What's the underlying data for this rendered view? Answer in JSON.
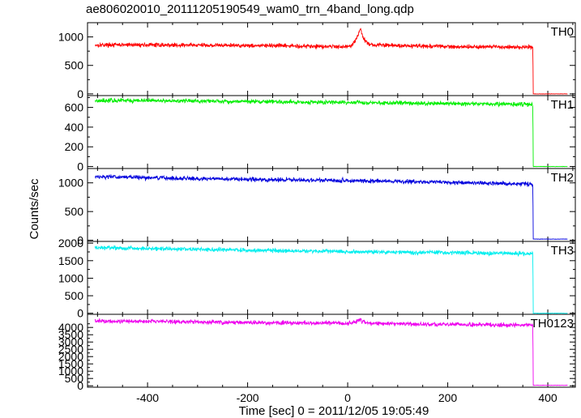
{
  "chart_data": {
    "type": "line",
    "title": "ae806020010_20111205190549_wam0_trn_4band_long.qdp",
    "xlabel": "Time [sec] 0 = 2011/12/05 19:05:49",
    "ylabel": "Counts/sec",
    "xlim": [
      -520,
      455
    ],
    "x_ticks": [
      -400,
      -200,
      0,
      200,
      400
    ],
    "grid": false,
    "panels": [
      {
        "name": "TH0",
        "color": "#ff0000",
        "ylim": [
          -30,
          1250
        ],
        "y_ticks": [
          0,
          500,
          1000
        ],
        "points": [
          [
            -505,
            860
          ],
          [
            -400,
            860
          ],
          [
            -200,
            850
          ],
          [
            0,
            830
          ],
          [
            10,
            870
          ],
          [
            20,
            1010
          ],
          [
            25,
            1150
          ],
          [
            32,
            960
          ],
          [
            45,
            860
          ],
          [
            200,
            830
          ],
          [
            370,
            820
          ],
          [
            371,
            0
          ],
          [
            440,
            0
          ]
        ]
      },
      {
        "name": "TH1",
        "color": "#00ee00",
        "ylim": [
          -20,
          720
        ],
        "y_ticks": [
          0,
          200,
          400,
          600
        ],
        "points": [
          [
            -505,
            670
          ],
          [
            -400,
            670
          ],
          [
            -200,
            660
          ],
          [
            0,
            650
          ],
          [
            200,
            640
          ],
          [
            370,
            630
          ],
          [
            371,
            0
          ],
          [
            440,
            0
          ]
        ]
      },
      {
        "name": "TH2",
        "color": "#0000dd",
        "ylim": [
          -20,
          1250
        ],
        "y_ticks": [
          0,
          500,
          1000
        ],
        "points": [
          [
            -505,
            1110
          ],
          [
            -400,
            1090
          ],
          [
            -200,
            1060
          ],
          [
            0,
            1040
          ],
          [
            200,
            1010
          ],
          [
            370,
            980
          ],
          [
            371,
            20
          ],
          [
            440,
            20
          ]
        ]
      },
      {
        "name": "TH3",
        "color": "#00eeee",
        "ylim": [
          -30,
          2050
        ],
        "y_ticks": [
          0,
          500,
          1000,
          1500,
          2000
        ],
        "points": [
          [
            -505,
            1870
          ],
          [
            -400,
            1850
          ],
          [
            -200,
            1800
          ],
          [
            0,
            1760
          ],
          [
            200,
            1730
          ],
          [
            370,
            1700
          ],
          [
            371,
            0
          ],
          [
            440,
            0
          ]
        ]
      },
      {
        "name": "TH0123",
        "color": "#ee00ee",
        "ylim": [
          -100,
          4900
        ],
        "y_ticks": [
          0,
          500,
          1000,
          1500,
          2000,
          2500,
          3000,
          3500,
          4000
        ],
        "points": [
          [
            -505,
            4450
          ],
          [
            -400,
            4420
          ],
          [
            -200,
            4330
          ],
          [
            0,
            4280
          ],
          [
            10,
            4330
          ],
          [
            20,
            4470
          ],
          [
            25,
            4550
          ],
          [
            32,
            4380
          ],
          [
            45,
            4280
          ],
          [
            200,
            4200
          ],
          [
            370,
            4150
          ],
          [
            371,
            30
          ],
          [
            440,
            30
          ]
        ]
      }
    ]
  }
}
